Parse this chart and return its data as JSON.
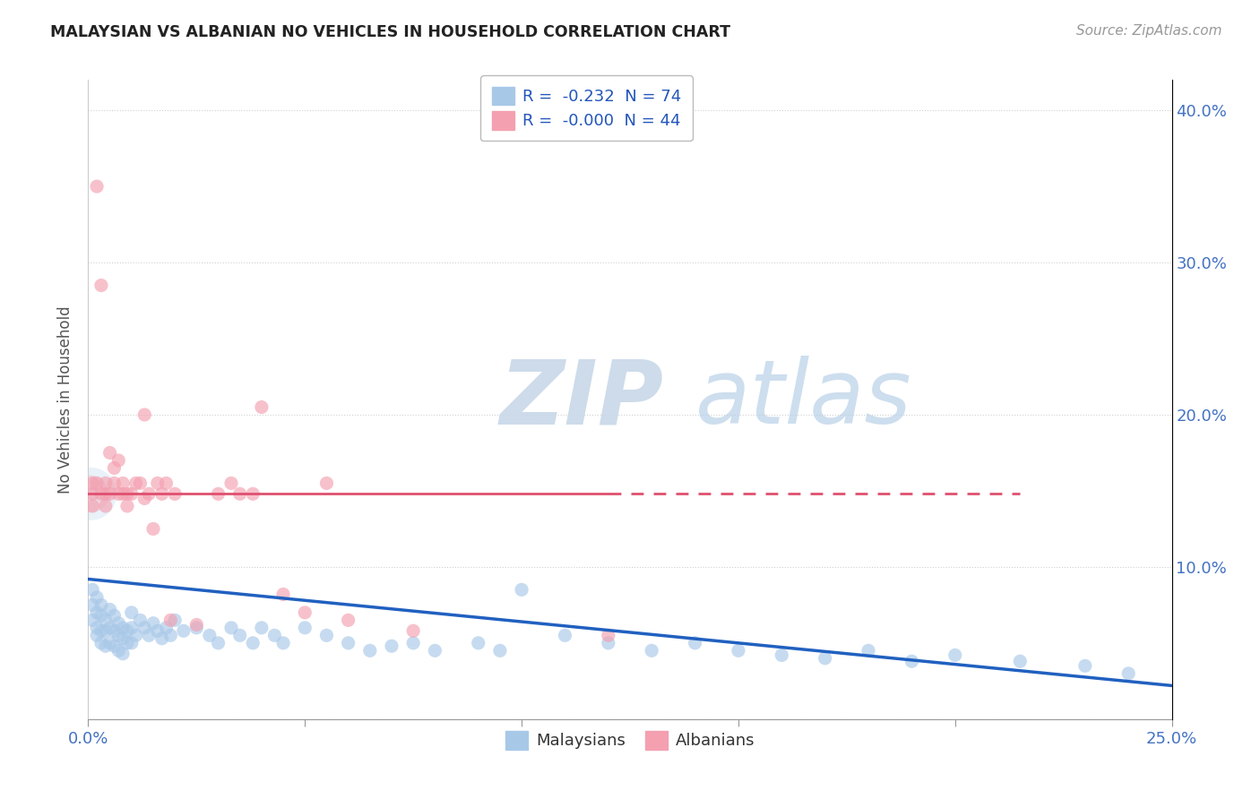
{
  "title": "MALAYSIAN VS ALBANIAN NO VEHICLES IN HOUSEHOLD CORRELATION CHART",
  "source": "Source: ZipAtlas.com",
  "ylabel": "No Vehicles in Household",
  "xlim": [
    0.0,
    0.25
  ],
  "ylim": [
    0.0,
    0.42
  ],
  "legend_r_blue": "-0.232",
  "legend_n_blue": "74",
  "legend_r_pink": "-0.000",
  "legend_n_pink": "44",
  "blue_color": "#a8c8e8",
  "pink_color": "#f4a0b0",
  "line_blue": "#2060c0",
  "line_pink": "#e05070",
  "blue_line_x": [
    0.0,
    0.25
  ],
  "blue_line_y": [
    0.092,
    0.022
  ],
  "pink_line_x": [
    0.0,
    0.215
  ],
  "pink_line_y": [
    0.148,
    0.148
  ],
  "malaysian_x": [
    0.001,
    0.001,
    0.001,
    0.002,
    0.002,
    0.002,
    0.002,
    0.003,
    0.003,
    0.003,
    0.003,
    0.004,
    0.004,
    0.004,
    0.005,
    0.005,
    0.005,
    0.006,
    0.006,
    0.006,
    0.007,
    0.007,
    0.007,
    0.008,
    0.008,
    0.008,
    0.009,
    0.009,
    0.01,
    0.01,
    0.01,
    0.011,
    0.012,
    0.013,
    0.014,
    0.015,
    0.016,
    0.017,
    0.018,
    0.019,
    0.02,
    0.022,
    0.025,
    0.028,
    0.03,
    0.033,
    0.035,
    0.038,
    0.04,
    0.043,
    0.045,
    0.05,
    0.055,
    0.06,
    0.065,
    0.07,
    0.075,
    0.08,
    0.09,
    0.095,
    0.1,
    0.11,
    0.12,
    0.13,
    0.14,
    0.15,
    0.16,
    0.17,
    0.18,
    0.19,
    0.2,
    0.215,
    0.23,
    0.24
  ],
  "malaysian_y": [
    0.085,
    0.075,
    0.065,
    0.08,
    0.07,
    0.06,
    0.055,
    0.075,
    0.068,
    0.058,
    0.05,
    0.065,
    0.058,
    0.048,
    0.072,
    0.06,
    0.05,
    0.068,
    0.058,
    0.048,
    0.063,
    0.055,
    0.045,
    0.06,
    0.053,
    0.043,
    0.058,
    0.05,
    0.07,
    0.06,
    0.05,
    0.055,
    0.065,
    0.06,
    0.055,
    0.063,
    0.058,
    0.053,
    0.06,
    0.055,
    0.065,
    0.058,
    0.06,
    0.055,
    0.05,
    0.06,
    0.055,
    0.05,
    0.06,
    0.055,
    0.05,
    0.06,
    0.055,
    0.05,
    0.045,
    0.048,
    0.05,
    0.045,
    0.05,
    0.045,
    0.085,
    0.055,
    0.05,
    0.045,
    0.05,
    0.045,
    0.042,
    0.04,
    0.045,
    0.038,
    0.042,
    0.038,
    0.035,
    0.03
  ],
  "albanian_x": [
    0.001,
    0.001,
    0.001,
    0.002,
    0.002,
    0.003,
    0.003,
    0.004,
    0.004,
    0.004,
    0.005,
    0.005,
    0.006,
    0.006,
    0.007,
    0.007,
    0.008,
    0.008,
    0.009,
    0.009,
    0.01,
    0.011,
    0.012,
    0.013,
    0.013,
    0.014,
    0.015,
    0.016,
    0.017,
    0.018,
    0.019,
    0.02,
    0.025,
    0.03,
    0.033,
    0.035,
    0.038,
    0.04,
    0.045,
    0.05,
    0.055,
    0.06,
    0.075,
    0.12
  ],
  "albanian_y": [
    0.155,
    0.148,
    0.14,
    0.35,
    0.155,
    0.285,
    0.148,
    0.155,
    0.148,
    0.14,
    0.175,
    0.148,
    0.165,
    0.155,
    0.17,
    0.148,
    0.155,
    0.148,
    0.148,
    0.14,
    0.148,
    0.155,
    0.155,
    0.145,
    0.2,
    0.148,
    0.125,
    0.155,
    0.148,
    0.155,
    0.065,
    0.148,
    0.062,
    0.148,
    0.155,
    0.148,
    0.148,
    0.205,
    0.082,
    0.07,
    0.155,
    0.065,
    0.058,
    0.055
  ]
}
